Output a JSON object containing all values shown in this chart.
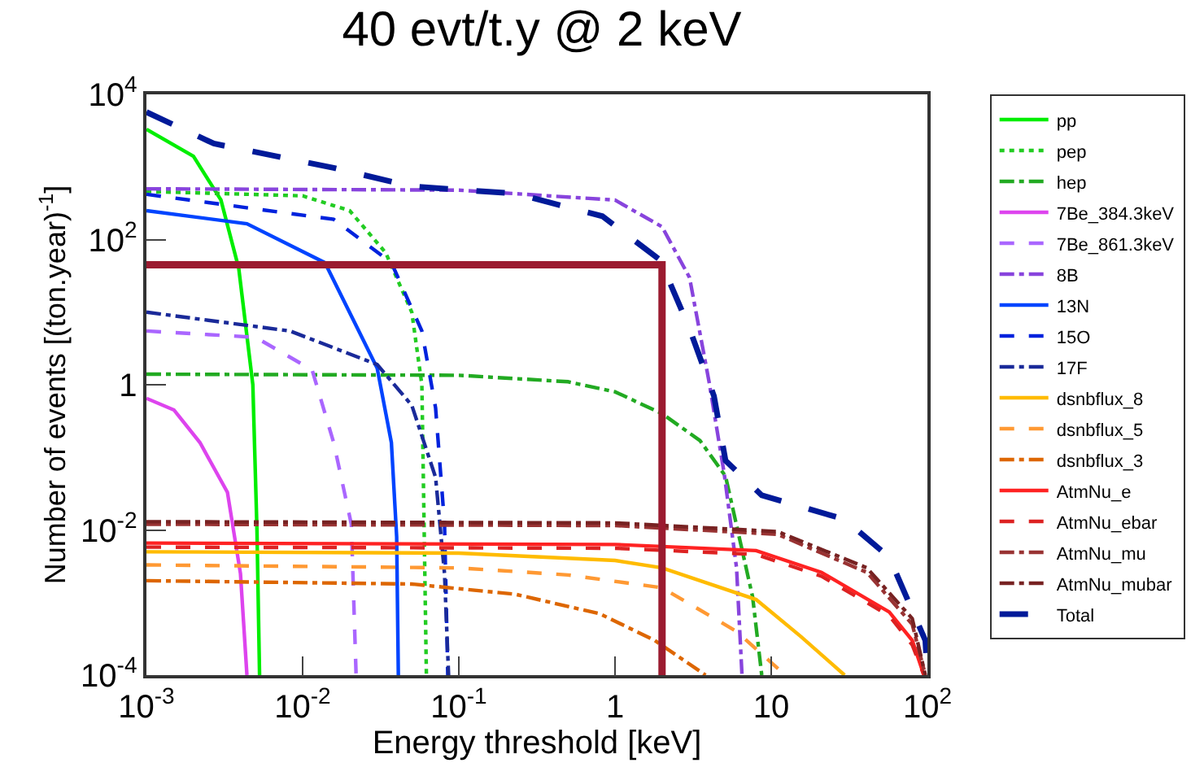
{
  "chart_data": {
    "type": "line",
    "title": "40 evt/t.y @ 2 keV",
    "xlabel": "Energy threshold [keV]",
    "ylabel": "Number of events [(ton.year)$^{-1}$]",
    "log": "xy",
    "xlim": [
      0.001,
      100
    ],
    "ylim": [
      0.0001,
      10000
    ],
    "xticks": [
      {
        "value": 0.001,
        "label": "10$^{-3}$"
      },
      {
        "value": 0.01,
        "label": "10$^{-2}$"
      },
      {
        "value": 0.1,
        "label": "10$^{-1}$"
      },
      1,
      10,
      {
        "value": 100,
        "label": "10$^{2}$"
      }
    ],
    "yticks": [
      {
        "value": 0.0001,
        "label": "10$^{-4}$"
      },
      {
        "value": 0.01,
        "label": "10$^{-2}$"
      },
      1,
      {
        "value": 100,
        "label": "10$^{2}$"
      },
      {
        "value": 10000,
        "label": "10$^{4}$"
      }
    ],
    "legend": "top right",
    "series": [
      {
        "name": "pp",
        "color": "#00ee00",
        "line_style": "solid",
        "x": [
          0.001,
          0.002,
          0.003,
          0.0039,
          0.0048,
          0.0051,
          0.0053
        ],
        "values": [
          3300,
          1400,
          350,
          40,
          1,
          0.01,
          0.0001
        ]
      },
      {
        "name": "pep",
        "color": "#22cc22",
        "line_style": "dotted",
        "x": [
          0.001,
          0.01,
          0.02,
          0.034,
          0.05,
          0.058,
          0.06,
          0.062
        ],
        "values": [
          460,
          400,
          250,
          66,
          10,
          1,
          0.01,
          0.0001
        ]
      },
      {
        "name": "hep",
        "color": "#22aa22",
        "line_style": "dashdot",
        "x": [
          0.001,
          0.1,
          0.5,
          1,
          2,
          3.5,
          5.1,
          7.6,
          8.7
        ],
        "values": [
          1.4,
          1.35,
          1.1,
          0.8,
          0.4,
          0.17,
          0.055,
          0.0012,
          0.0001
        ]
      },
      {
        "name": "7Be_384.3keV",
        "color": "#dd44ee",
        "line_style": "solid",
        "x": [
          0.001,
          0.0015,
          0.0022,
          0.0033,
          0.004,
          0.0044
        ],
        "values": [
          0.65,
          0.45,
          0.16,
          0.033,
          0.0025,
          0.0001
        ]
      },
      {
        "name": "7Be_861.3keV",
        "color": "#aa66ff",
        "line_style": "dashed",
        "x": [
          0.001,
          0.005,
          0.0115,
          0.0158,
          0.0205,
          0.022
        ],
        "values": [
          5.5,
          4.5,
          1.6,
          0.16,
          0.012,
          0.0001
        ]
      },
      {
        "name": "8B",
        "color": "#8844dd",
        "line_style": "dashdot",
        "x": [
          0.001,
          0.1,
          1,
          2,
          3,
          4,
          5,
          6,
          6.5
        ],
        "values": [
          500,
          480,
          350,
          150,
          30,
          1.1,
          0.06,
          0.003,
          0.0001
        ]
      },
      {
        "name": "13N",
        "color": "#0044ff",
        "line_style": "solid",
        "x": [
          0.001,
          0.0044,
          0.0139,
          0.03,
          0.037,
          0.04,
          0.041
        ],
        "values": [
          250,
          165,
          48,
          1.7,
          0.16,
          0.008,
          0.0001
        ]
      },
      {
        "name": "15O",
        "color": "#0022dd",
        "line_style": "dashed",
        "x": [
          0.001,
          0.0158,
          0.037,
          0.058,
          0.071,
          0.081,
          0.085
        ],
        "values": [
          420,
          190,
          48,
          5.5,
          0.48,
          0.012,
          0.0001
        ]
      },
      {
        "name": "17F",
        "color": "#1a2a99",
        "line_style": "dashdot",
        "x": [
          0.001,
          0.0083,
          0.03,
          0.05,
          0.071,
          0.081,
          0.086
        ],
        "values": [
          10,
          5.5,
          1.9,
          0.52,
          0.053,
          0.0025,
          0.0001
        ]
      },
      {
        "name": "dsnbflux_8",
        "color": "#ffbb00",
        "line_style": "solid",
        "x": [
          0.001,
          0.1,
          1,
          2,
          8,
          15.5,
          29.5
        ],
        "values": [
          0.005,
          0.0048,
          0.0038,
          0.003,
          0.0011,
          0.00034,
          0.0001
        ]
      },
      {
        "name": "dsnbflux_5",
        "color": "#ff9933",
        "line_style": "dashed",
        "x": [
          0.001,
          0.1,
          0.5,
          2,
          6,
          12.3
        ],
        "values": [
          0.0033,
          0.003,
          0.0024,
          0.0016,
          0.0004,
          0.0001
        ]
      },
      {
        "name": "dsnbflux_3",
        "color": "#dd6600",
        "line_style": "dashdot",
        "x": [
          0.001,
          0.05,
          0.23,
          0.8,
          1.8,
          3.8
        ],
        "values": [
          0.002,
          0.0018,
          0.0013,
          0.0007,
          0.0003,
          0.0001
        ]
      },
      {
        "name": "AtmNu_e",
        "color": "#ff2222",
        "line_style": "solid",
        "x": [
          0.001,
          1,
          8,
          21,
          57,
          80,
          95
        ],
        "values": [
          0.0066,
          0.0063,
          0.0052,
          0.0026,
          0.00074,
          0.0003,
          0.0001
        ]
      },
      {
        "name": "AtmNu_ebar",
        "color": "#dd2222",
        "line_style": "dashed",
        "x": [
          0.001,
          1,
          8,
          21,
          57,
          80,
          95
        ],
        "values": [
          0.0058,
          0.0056,
          0.0046,
          0.0023,
          0.00066,
          0.00026,
          0.0001
        ]
      },
      {
        "name": "AtmNu_mu",
        "color": "#993333",
        "line_style": "dashdot",
        "x": [
          0.001,
          1,
          11,
          41,
          80,
          97
        ],
        "values": [
          0.012,
          0.0115,
          0.0087,
          0.0026,
          0.0005,
          0.0001
        ]
      },
      {
        "name": "AtmNu_mubar",
        "color": "#772222",
        "line_style": "dashdot",
        "x": [
          0.001,
          1,
          11,
          41,
          80,
          97
        ],
        "values": [
          0.013,
          0.0125,
          0.0095,
          0.003,
          0.0006,
          0.0001
        ]
      },
      {
        "name": "Total",
        "color": "#001a99",
        "line_style": "longdash",
        "x": [
          0.001,
          0.0027,
          0.0158,
          0.05,
          0.23,
          0.83,
          1.95,
          3,
          4.3,
          5.1,
          8.7,
          29.5,
          57,
          97,
          100
        ],
        "values": [
          5700,
          2100,
          970,
          540,
          430,
          210,
          52,
          5.9,
          0.7,
          0.09,
          0.03,
          0.014,
          0.0042,
          0.0003,
          0.0001
        ]
      },
      {
        "color": "#9b1b30",
        "line_style": "solid",
        "x": [
          0.001,
          2,
          2
        ],
        "values": [
          45,
          45,
          0.0001
        ]
      }
    ]
  }
}
